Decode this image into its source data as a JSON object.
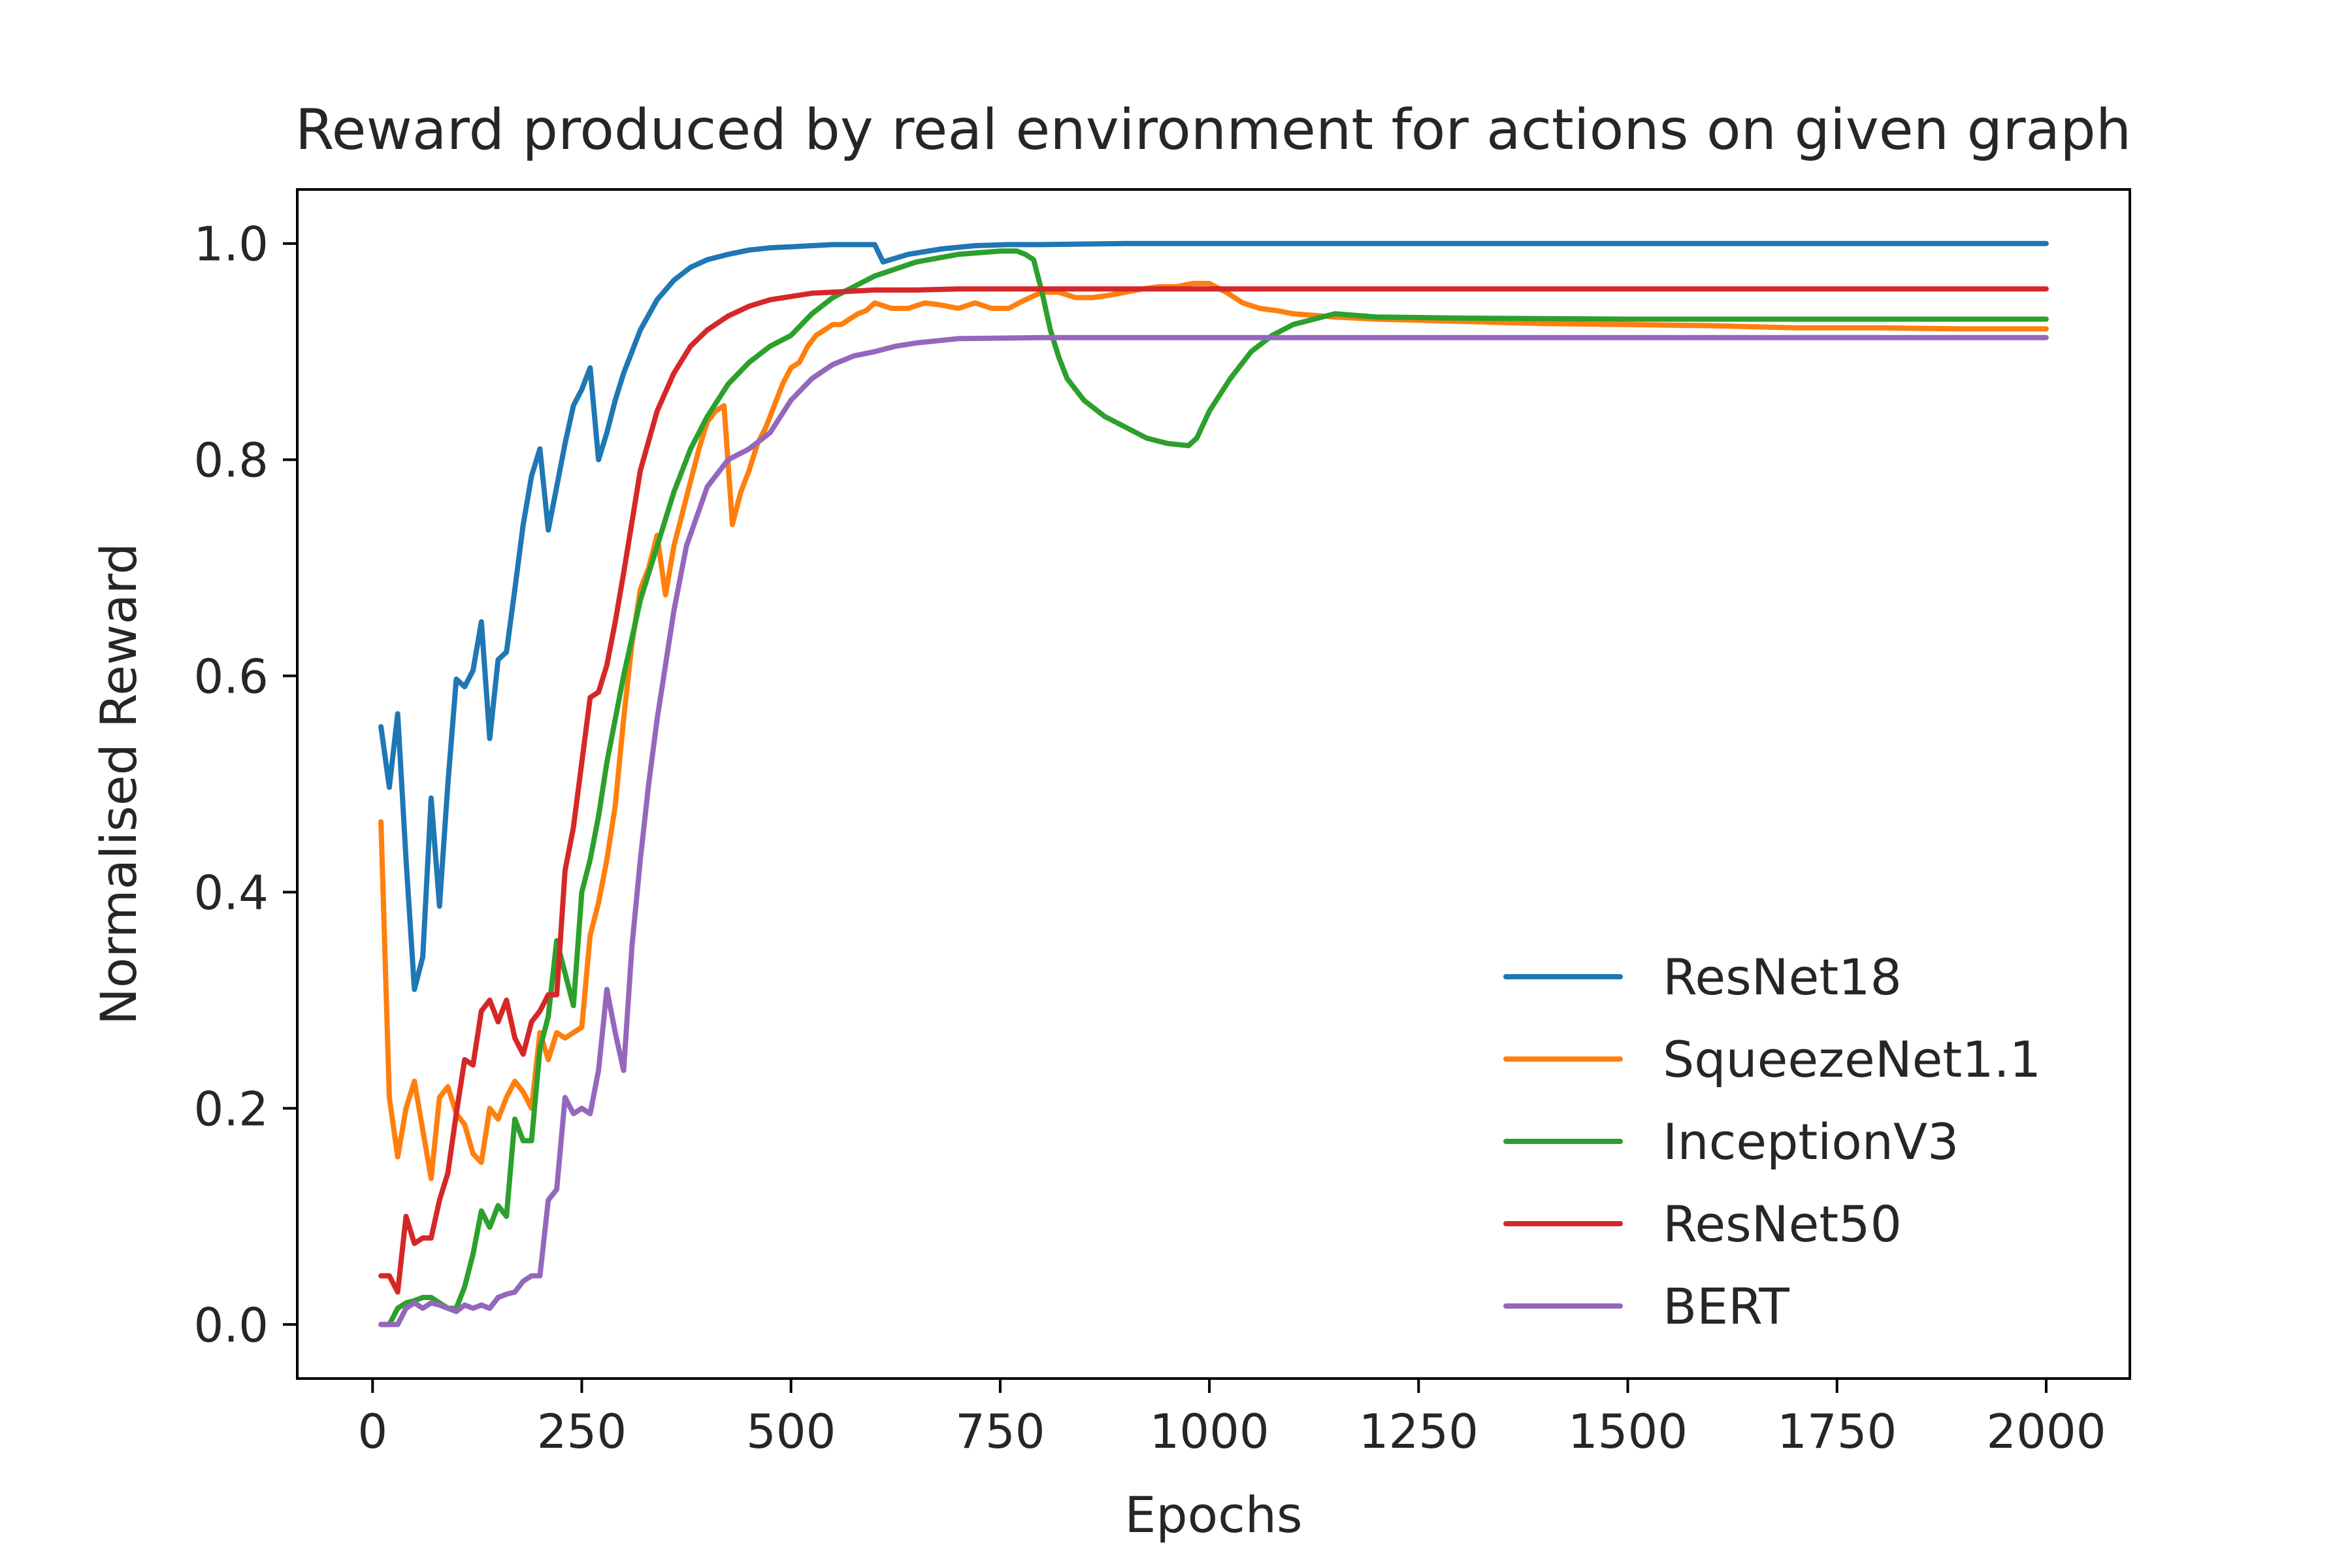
{
  "chart_data": {
    "type": "line",
    "title": "Reward produced by real environment for actions on given graph",
    "xlabel": "Epochs",
    "ylabel": "Normalised Reward",
    "xlim": [
      -90,
      2100
    ],
    "ylim": [
      -0.05,
      1.05
    ],
    "xticks": [
      0,
      250,
      500,
      750,
      1000,
      1250,
      1500,
      1750,
      2000
    ],
    "yticks": [
      0.0,
      0.2,
      0.4,
      0.6,
      0.8,
      1.0
    ],
    "xtick_labels": [
      "0",
      "250",
      "500",
      "750",
      "1000",
      "1250",
      "1500",
      "1750",
      "2000"
    ],
    "ytick_labels": [
      "0.0",
      "0.2",
      "0.4",
      "0.6",
      "0.8",
      "1.0"
    ],
    "grid": false,
    "legend_position": "lower-right",
    "series": [
      {
        "name": "ResNet18",
        "color": "#1f77b4",
        "x": [
          10,
          20,
          30,
          40,
          50,
          60,
          70,
          80,
          90,
          100,
          110,
          120,
          130,
          140,
          150,
          160,
          170,
          180,
          190,
          200,
          210,
          220,
          230,
          240,
          250,
          260,
          270,
          280,
          290,
          300,
          320,
          340,
          360,
          380,
          400,
          425,
          450,
          475,
          500,
          525,
          550,
          575,
          600,
          610,
          640,
          680,
          720,
          760,
          800,
          900,
          1000,
          1200,
          1500,
          1800,
          2000
        ],
        "y": [
          0.553,
          0.497,
          0.565,
          0.43,
          0.31,
          0.34,
          0.487,
          0.387,
          0.5,
          0.597,
          0.59,
          0.605,
          0.65,
          0.542,
          0.615,
          0.622,
          0.68,
          0.74,
          0.785,
          0.81,
          0.735,
          0.775,
          0.815,
          0.85,
          0.865,
          0.885,
          0.8,
          0.825,
          0.855,
          0.88,
          0.92,
          0.948,
          0.966,
          0.978,
          0.985,
          0.99,
          0.994,
          0.996,
          0.997,
          0.998,
          0.999,
          0.999,
          0.999,
          0.983,
          0.99,
          0.995,
          0.998,
          0.999,
          0.999,
          1.0,
          1.0,
          1.0,
          1.0,
          1.0,
          1.0
        ]
      },
      {
        "name": "SqueezeNet1.1",
        "color": "#ff7f0e",
        "x": [
          10,
          20,
          30,
          40,
          50,
          60,
          70,
          80,
          90,
          100,
          110,
          120,
          130,
          140,
          150,
          160,
          170,
          180,
          190,
          200,
          210,
          220,
          230,
          240,
          250,
          260,
          270,
          280,
          290,
          300,
          310,
          320,
          330,
          340,
          350,
          360,
          370,
          380,
          390,
          400,
          410,
          420,
          430,
          440,
          450,
          460,
          470,
          480,
          490,
          500,
          510,
          520,
          530,
          540,
          550,
          560,
          570,
          580,
          590,
          600,
          620,
          640,
          660,
          680,
          700,
          720,
          740,
          760,
          780,
          800,
          820,
          840,
          860,
          880,
          900,
          920,
          940,
          960,
          980,
          1000,
          1020,
          1040,
          1060,
          1080,
          1100,
          1150,
          1200,
          1300,
          1400,
          1500,
          1600,
          1700,
          1800,
          1900,
          2000
        ],
        "y": [
          0.465,
          0.21,
          0.155,
          0.2,
          0.225,
          0.18,
          0.135,
          0.21,
          0.22,
          0.195,
          0.185,
          0.158,
          0.15,
          0.2,
          0.19,
          0.21,
          0.225,
          0.215,
          0.2,
          0.27,
          0.245,
          0.27,
          0.265,
          0.27,
          0.275,
          0.36,
          0.39,
          0.43,
          0.48,
          0.56,
          0.63,
          0.68,
          0.7,
          0.73,
          0.675,
          0.72,
          0.75,
          0.78,
          0.81,
          0.835,
          0.845,
          0.85,
          0.74,
          0.77,
          0.79,
          0.815,
          0.83,
          0.85,
          0.87,
          0.885,
          0.89,
          0.905,
          0.915,
          0.92,
          0.925,
          0.925,
          0.93,
          0.935,
          0.938,
          0.945,
          0.94,
          0.94,
          0.945,
          0.943,
          0.94,
          0.945,
          0.94,
          0.94,
          0.948,
          0.955,
          0.955,
          0.95,
          0.95,
          0.952,
          0.955,
          0.958,
          0.96,
          0.96,
          0.963,
          0.963,
          0.955,
          0.945,
          0.94,
          0.938,
          0.935,
          0.932,
          0.93,
          0.928,
          0.926,
          0.925,
          0.924,
          0.922,
          0.922,
          0.921,
          0.921
        ]
      },
      {
        "name": "InceptionV3",
        "color": "#2ca02c",
        "x": [
          10,
          20,
          30,
          40,
          50,
          60,
          70,
          80,
          90,
          100,
          110,
          120,
          130,
          140,
          150,
          160,
          170,
          180,
          190,
          200,
          210,
          220,
          230,
          240,
          250,
          260,
          270,
          280,
          290,
          300,
          320,
          340,
          360,
          380,
          400,
          425,
          450,
          475,
          500,
          525,
          550,
          575,
          600,
          650,
          700,
          750,
          770,
          780,
          790,
          800,
          810,
          820,
          830,
          850,
          875,
          900,
          925,
          950,
          975,
          985,
          1000,
          1025,
          1050,
          1075,
          1100,
          1150,
          1200,
          1300,
          1500,
          1800,
          2000
        ],
        "y": [
          0.0,
          0.0,
          0.015,
          0.02,
          0.022,
          0.025,
          0.025,
          0.02,
          0.015,
          0.015,
          0.035,
          0.065,
          0.105,
          0.09,
          0.11,
          0.1,
          0.19,
          0.17,
          0.17,
          0.255,
          0.285,
          0.355,
          0.325,
          0.295,
          0.4,
          0.43,
          0.47,
          0.52,
          0.56,
          0.6,
          0.67,
          0.72,
          0.77,
          0.81,
          0.84,
          0.87,
          0.89,
          0.905,
          0.915,
          0.935,
          0.95,
          0.96,
          0.97,
          0.983,
          0.99,
          0.993,
          0.993,
          0.99,
          0.985,
          0.955,
          0.92,
          0.895,
          0.875,
          0.855,
          0.84,
          0.83,
          0.82,
          0.815,
          0.813,
          0.82,
          0.845,
          0.875,
          0.9,
          0.915,
          0.925,
          0.935,
          0.932,
          0.931,
          0.93,
          0.93,
          0.93
        ]
      },
      {
        "name": "ResNet50",
        "color": "#d62728",
        "x": [
          10,
          20,
          30,
          40,
          50,
          60,
          70,
          80,
          90,
          100,
          110,
          120,
          130,
          140,
          150,
          160,
          170,
          180,
          190,
          200,
          210,
          220,
          230,
          240,
          250,
          260,
          270,
          280,
          290,
          300,
          320,
          340,
          360,
          380,
          400,
          425,
          450,
          475,
          500,
          525,
          550,
          575,
          600,
          650,
          700,
          800,
          1000,
          1500,
          2000
        ],
        "y": [
          0.045,
          0.045,
          0.03,
          0.1,
          0.075,
          0.08,
          0.08,
          0.115,
          0.14,
          0.195,
          0.245,
          0.24,
          0.29,
          0.3,
          0.28,
          0.3,
          0.265,
          0.25,
          0.28,
          0.29,
          0.305,
          0.305,
          0.42,
          0.46,
          0.52,
          0.58,
          0.585,
          0.61,
          0.65,
          0.695,
          0.79,
          0.845,
          0.88,
          0.905,
          0.92,
          0.933,
          0.942,
          0.948,
          0.951,
          0.954,
          0.955,
          0.956,
          0.957,
          0.957,
          0.958,
          0.958,
          0.958,
          0.958,
          0.958
        ]
      },
      {
        "name": "BERT",
        "color": "#9467bd",
        "x": [
          10,
          20,
          30,
          40,
          50,
          60,
          70,
          80,
          90,
          100,
          110,
          120,
          130,
          140,
          150,
          160,
          170,
          180,
          190,
          200,
          210,
          220,
          230,
          240,
          250,
          260,
          270,
          280,
          290,
          300,
          310,
          320,
          330,
          340,
          350,
          360,
          375,
          400,
          425,
          450,
          475,
          500,
          525,
          550,
          575,
          600,
          625,
          650,
          700,
          800,
          1000,
          1500,
          2000
        ],
        "y": [
          0.0,
          0.0,
          0.0,
          0.015,
          0.02,
          0.015,
          0.02,
          0.018,
          0.015,
          0.012,
          0.018,
          0.015,
          0.018,
          0.015,
          0.025,
          0.028,
          0.03,
          0.04,
          0.045,
          0.045,
          0.115,
          0.125,
          0.21,
          0.195,
          0.2,
          0.195,
          0.235,
          0.31,
          0.27,
          0.235,
          0.35,
          0.43,
          0.5,
          0.56,
          0.61,
          0.66,
          0.72,
          0.775,
          0.8,
          0.81,
          0.825,
          0.855,
          0.875,
          0.888,
          0.896,
          0.9,
          0.905,
          0.908,
          0.912,
          0.913,
          0.913,
          0.913,
          0.913
        ]
      }
    ]
  }
}
